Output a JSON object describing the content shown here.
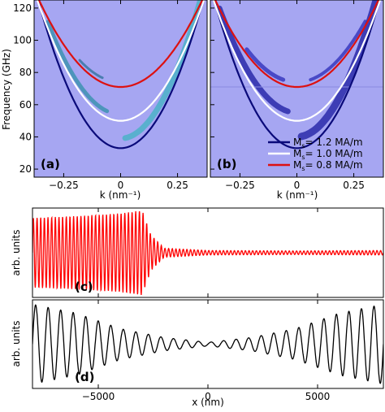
{
  "chart_data": [
    {
      "panel_label": "(a)",
      "type": "heatmap",
      "ylabel": "Frequency (GHz)",
      "xlabel": "k (nm⁻¹)",
      "xlim": [
        -0.38,
        0.38
      ],
      "ylim": [
        15,
        125
      ],
      "xticks": [
        -0.25,
        0,
        0.25
      ],
      "xtick_labels": [
        "−0.25",
        "0",
        "0.25"
      ],
      "yticks": [
        20,
        40,
        60,
        80,
        100,
        120
      ],
      "ytick_labels": [
        "20",
        "40",
        "60",
        "80",
        "100",
        "120"
      ],
      "background_color": "#a6a6f2",
      "series": [
        {
          "name_main": "M",
          "name_sub": "s",
          "name_rest": "= 1.2 MA/m",
          "color": "#0a0a7a",
          "min_frequency": 33,
          "curvature": 700
        },
        {
          "name_main": "M",
          "name_sub": "s",
          "name_rest": "= 1.0 MA/m",
          "color": "#ffffff",
          "min_frequency": 50,
          "curvature": 560
        },
        {
          "name_main": "M",
          "name_sub": "s",
          "name_rest": "= 0.8 MA/m",
          "color": "#dd1111",
          "min_frequency": 71,
          "curvature": 420
        }
      ]
    },
    {
      "panel_label": "(b)",
      "type": "heatmap",
      "xlabel": "k (nm⁻¹)",
      "xlim": [
        -0.38,
        0.38
      ],
      "ylim": [
        15,
        125
      ],
      "xticks": [
        -0.25,
        0,
        0.25
      ],
      "xtick_labels": [
        "−0.25",
        "0",
        "0.25"
      ],
      "background_color": "#a6a6f2",
      "legend_position": "lower-right"
    },
    {
      "panel_label": "(c)",
      "type": "line",
      "ylabel": "arb. units",
      "color": "#ff0000",
      "xlim": [
        -8000,
        8000
      ],
      "amplitude_envelope": [
        {
          "x": -8000,
          "y": 0.78
        },
        {
          "x": -6000,
          "y": 0.82
        },
        {
          "x": -4000,
          "y": 0.88
        },
        {
          "x": -3000,
          "y": 0.95
        },
        {
          "x": -2600,
          "y": 0.4
        },
        {
          "x": -2000,
          "y": 0.1
        },
        {
          "x": 0,
          "y": 0.05
        },
        {
          "x": 4000,
          "y": 0.04
        },
        {
          "x": 8000,
          "y": 0.05
        }
      ]
    },
    {
      "panel_label": "(d)",
      "type": "line",
      "ylabel": "arb. units",
      "xlabel": "x (nm)",
      "color": "#000000",
      "xlim": [
        -8000,
        8000
      ],
      "xticks": [
        -5000,
        0,
        5000
      ],
      "xtick_labels": [
        "−5000",
        "0",
        "5000"
      ],
      "amplitude_envelope": [
        {
          "x": -8000,
          "y": 0.9
        },
        {
          "x": -6000,
          "y": 0.7
        },
        {
          "x": -4000,
          "y": 0.35
        },
        {
          "x": -2000,
          "y": 0.15
        },
        {
          "x": 0,
          "y": 0.04
        },
        {
          "x": 2000,
          "y": 0.15
        },
        {
          "x": 4000,
          "y": 0.35
        },
        {
          "x": 6000,
          "y": 0.7
        },
        {
          "x": 8000,
          "y": 0.9
        }
      ]
    }
  ]
}
